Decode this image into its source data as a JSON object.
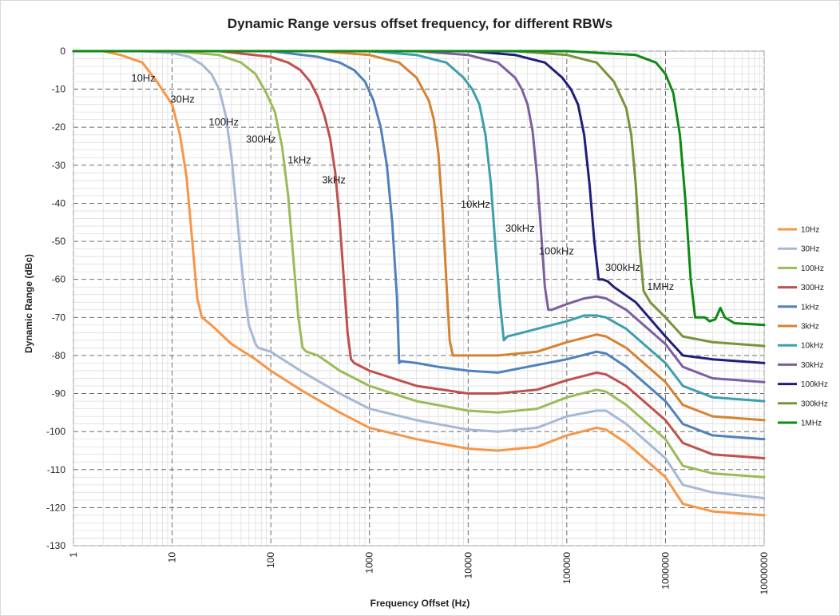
{
  "chart_data": {
    "type": "line",
    "title": "Dynamic Range versus offset frequency, for different RBWs",
    "xlabel": "Frequency Offset (Hz)",
    "ylabel": "Dynamic Range (dBc)",
    "x_scale": "log",
    "xlim": [
      1,
      10000000
    ],
    "ylim": [
      -130,
      0
    ],
    "x_ticks": [
      "1",
      "10",
      "100",
      "1000",
      "10000",
      "100000",
      "1000000",
      "10000000"
    ],
    "y_ticks": [
      "0",
      "-10",
      "-20",
      "-30",
      "-40",
      "-50",
      "-60",
      "-70",
      "-80",
      "-90",
      "-100",
      "-110",
      "-120",
      "-130"
    ],
    "grid": true,
    "legend_position": "right",
    "series": [
      {
        "name": "10Hz",
        "color": "#f79646",
        "label": "10Hz",
        "x": [
          1,
          2,
          3,
          5,
          7,
          10,
          12,
          14,
          16,
          18,
          20,
          25,
          40,
          70,
          100,
          200,
          500,
          1000,
          3000,
          10000,
          20000,
          50000,
          100000,
          200000,
          250000,
          400000,
          1000000,
          1500000,
          3000000,
          10000000
        ],
        "y": [
          0,
          0,
          -1,
          -3,
          -8,
          -14,
          -22,
          -33,
          -50,
          -65,
          -70,
          -72,
          -77,
          -81,
          -84,
          -89,
          -95,
          -99,
          -102,
          -104.5,
          -105,
          -104,
          -101,
          -99,
          -99.5,
          -103,
          -112,
          -119,
          -121,
          -122
        ]
      },
      {
        "name": "30Hz",
        "color": "#a5b8d6",
        "label": "30Hz",
        "x": [
          1,
          5,
          10,
          15,
          20,
          25,
          30,
          35,
          40,
          45,
          50,
          55,
          60,
          70,
          75,
          100,
          200,
          500,
          1000,
          3000,
          10000,
          20000,
          50000,
          100000,
          200000,
          250000,
          400000,
          1000000,
          1500000,
          3000000,
          10000000
        ],
        "y": [
          0,
          0,
          -0.5,
          -1.5,
          -3.5,
          -6,
          -10,
          -17,
          -28,
          -42,
          -55,
          -65,
          -72,
          -77,
          -78,
          -79,
          -84,
          -90,
          -94,
          -97,
          -99.5,
          -100,
          -99,
          -96,
          -94.5,
          -94.5,
          -98,
          -107,
          -114,
          -116,
          -117.5
        ]
      },
      {
        "name": "100Hz",
        "color": "#9bbb59",
        "label": "100Hz",
        "x": [
          1,
          10,
          30,
          50,
          70,
          90,
          110,
          130,
          150,
          170,
          190,
          210,
          230,
          300,
          500,
          1000,
          3000,
          10000,
          20000,
          50000,
          100000,
          200000,
          250000,
          400000,
          1000000,
          1500000,
          3000000,
          10000000
        ],
        "y": [
          0,
          0,
          -1,
          -3,
          -6,
          -11,
          -16,
          -25,
          -38,
          -55,
          -70,
          -78,
          -79,
          -80,
          -84,
          -88,
          -92,
          -94.5,
          -95,
          -94,
          -91,
          -89,
          -89.5,
          -93,
          -102,
          -109,
          -111,
          -112
        ]
      },
      {
        "name": "300Hz",
        "color": "#c0504d",
        "label": "300Hz",
        "x": [
          1,
          30,
          100,
          150,
          200,
          250,
          300,
          350,
          400,
          450,
          500,
          550,
          600,
          650,
          700,
          1000,
          3000,
          10000,
          20000,
          50000,
          100000,
          200000,
          250000,
          400000,
          1000000,
          1500000,
          3000000,
          10000000
        ],
        "y": [
          0,
          0,
          -1.5,
          -3,
          -5,
          -8,
          -12,
          -17,
          -23,
          -32,
          -45,
          -60,
          -74,
          -81,
          -82,
          -84,
          -88,
          -90,
          -90,
          -89,
          -86.5,
          -84.5,
          -85,
          -88,
          -97,
          -103,
          -106,
          -107
        ]
      },
      {
        "name": "1kHz",
        "color": "#4f81bd",
        "label": "1kHz",
        "x": [
          1,
          100,
          300,
          500,
          700,
          900,
          1100,
          1300,
          1500,
          1700,
          1900,
          2000,
          2100,
          3000,
          5000,
          10000,
          20000,
          50000,
          100000,
          200000,
          250000,
          400000,
          1000000,
          1500000,
          3000000,
          10000000
        ],
        "y": [
          0,
          0,
          -1.5,
          -3,
          -5,
          -8,
          -13,
          -20,
          -30,
          -45,
          -65,
          -82,
          -81.5,
          -82,
          -83,
          -84,
          -84.5,
          -82.5,
          -81,
          -79,
          -79.5,
          -83,
          -92,
          -98,
          -101,
          -102
        ]
      },
      {
        "name": "3kHz",
        "color": "#d58232",
        "label": "3kHz",
        "x": [
          1,
          300,
          1000,
          2000,
          3000,
          4000,
          4500,
          5000,
          5500,
          6000,
          6500,
          7000,
          10000,
          20000,
          50000,
          100000,
          200000,
          250000,
          400000,
          1000000,
          1500000,
          3000000,
          10000000
        ],
        "y": [
          0,
          0,
          -1,
          -3,
          -7,
          -13,
          -18,
          -27,
          -42,
          -60,
          -76,
          -80,
          -80,
          -80,
          -79,
          -76.5,
          -74.5,
          -75,
          -78,
          -87,
          -93,
          -96,
          -97
        ]
      },
      {
        "name": "10kHz",
        "color": "#3b9fad",
        "label": "10kHz",
        "x": [
          1,
          1000,
          3000,
          6000,
          9000,
          11000,
          13000,
          15000,
          17000,
          19000,
          21000,
          23000,
          25000,
          30000,
          50000,
          100000,
          150000,
          200000,
          250000,
          400000,
          1000000,
          1500000,
          3000000,
          10000000
        ],
        "y": [
          0,
          0,
          -1,
          -3,
          -7,
          -10,
          -14,
          -22,
          -35,
          -52,
          -66,
          -76,
          -75,
          -74.5,
          -73,
          -71,
          -69.5,
          -69.5,
          -70,
          -73,
          -82,
          -88,
          -91,
          -92
        ]
      },
      {
        "name": "30kHz",
        "color": "#7d5ea0",
        "label": "30kHz",
        "x": [
          1,
          3000,
          10000,
          20000,
          30000,
          35000,
          40000,
          45000,
          50000,
          55000,
          60000,
          65000,
          70000,
          100000,
          150000,
          200000,
          250000,
          400000,
          1000000,
          1500000,
          3000000,
          10000000
        ],
        "y": [
          0,
          0,
          -1,
          -3,
          -7,
          -10,
          -14,
          -21,
          -33,
          -48,
          -62,
          -68,
          -68,
          -66.5,
          -65,
          -64.5,
          -65,
          -68,
          -77,
          -83,
          -86,
          -87
        ]
      },
      {
        "name": "100kHz",
        "color": "#1f1f7a",
        "label": "100kHz",
        "x": [
          1,
          10000,
          30000,
          60000,
          90000,
          110000,
          130000,
          150000,
          170000,
          190000,
          210000,
          230000,
          260000,
          300000,
          500000,
          1000000,
          1500000,
          3000000,
          10000000
        ],
        "y": [
          0,
          0,
          -1,
          -3,
          -7,
          -10,
          -14,
          -22,
          -35,
          -50,
          -60,
          -60,
          -60.5,
          -62,
          -66,
          -75,
          -80,
          -81,
          -82
        ]
      },
      {
        "name": "300kHz",
        "color": "#77933c",
        "label": "300kHz",
        "x": [
          1,
          30000,
          100000,
          200000,
          300000,
          400000,
          450000,
          500000,
          550000,
          600000,
          700000,
          1000000,
          1500000,
          3000000,
          10000000
        ],
        "y": [
          0,
          0,
          -1,
          -3,
          -8,
          -15,
          -22,
          -35,
          -52,
          -63,
          -66,
          -70,
          -75,
          -76.5,
          -77.5
        ]
      },
      {
        "name": "1MHz",
        "color": "#0e8a14",
        "label": "1MHz",
        "x": [
          1,
          100000,
          500000,
          800000,
          1000000,
          1200000,
          1400000,
          1600000,
          1800000,
          2000000,
          2500000,
          2800000,
          3200000,
          3600000,
          4000000,
          5000000,
          10000000
        ],
        "y": [
          0,
          0,
          -1,
          -3,
          -6,
          -11,
          -22,
          -40,
          -60,
          -70,
          -70,
          -71,
          -70.5,
          -67.5,
          -70,
          -71.5,
          -72
        ]
      }
    ]
  }
}
